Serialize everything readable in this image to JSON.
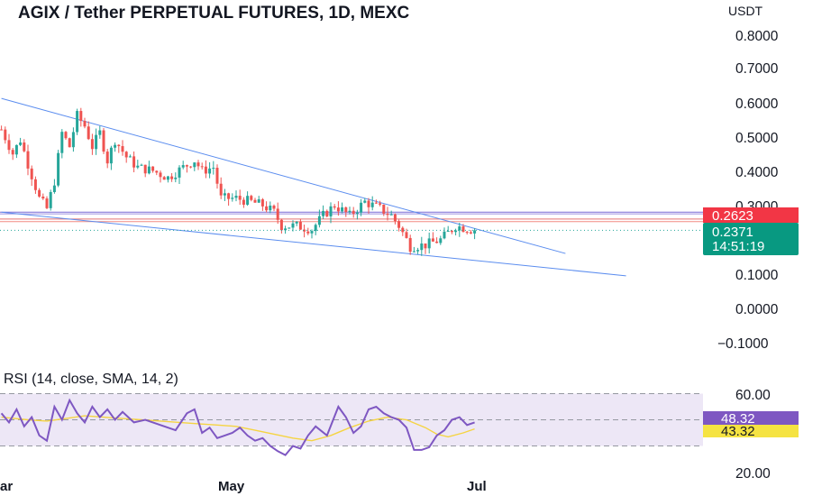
{
  "header": {
    "title": "AGIX / Tether PERPETUAL FUTURES, 1D, MEXC",
    "currency": "USDT"
  },
  "price_axis": {
    "ticks": [
      "0.8000",
      "0.7000",
      "0.6000",
      "0.5000",
      "0.4000",
      "0.3000",
      "0.1000",
      "0.0000",
      "−0.1000"
    ]
  },
  "price_tags": {
    "resistance": "0.2623",
    "last_price": "0.2371",
    "countdown": "14:51:19"
  },
  "time_axis": {
    "labels": [
      "ar",
      "May",
      "Jul"
    ]
  },
  "rsi_panel": {
    "title": "RSI (14, close, SMA, 14, 2)",
    "ticks": [
      "60.00",
      "20.00"
    ],
    "rsi_value": "48.32",
    "sma_value": "43.32"
  },
  "colors": {
    "up": "#26a69a",
    "down": "#ef5350",
    "trendline": "#5b8def",
    "rsi": "#7e57c2",
    "rsi_sma": "#f5d442",
    "rsi_band": "#ede7f6",
    "resistance_tag": "#f23645",
    "last_price_tag": "#089981"
  },
  "chart_data": [
    {
      "type": "candlestick",
      "title": "AGIX / Tether PERPETUAL FUTURES, 1D, MEXC",
      "ylabel": "USDT",
      "ylim": [
        -0.15,
        0.85
      ],
      "x_labels": [
        "ar",
        "May",
        "Jul"
      ],
      "anchors": [
        {
          "d": -2,
          "p": 0.53
        },
        {
          "d": 1,
          "p": 0.46
        },
        {
          "d": 3,
          "p": 0.5
        },
        {
          "d": 5,
          "p": 0.43
        },
        {
          "d": 8,
          "p": 0.33
        },
        {
          "d": 10,
          "p": 0.3
        },
        {
          "d": 12,
          "p": 0.38
        },
        {
          "d": 14,
          "p": 0.52
        },
        {
          "d": 16,
          "p": 0.48
        },
        {
          "d": 18,
          "p": 0.57
        },
        {
          "d": 20,
          "p": 0.54
        },
        {
          "d": 22,
          "p": 0.48
        },
        {
          "d": 24,
          "p": 0.52
        },
        {
          "d": 26,
          "p": 0.44
        },
        {
          "d": 28,
          "p": 0.5
        },
        {
          "d": 31,
          "p": 0.45
        },
        {
          "d": 34,
          "p": 0.42
        },
        {
          "d": 38,
          "p": 0.41
        },
        {
          "d": 42,
          "p": 0.39
        },
        {
          "d": 46,
          "p": 0.42
        },
        {
          "d": 49,
          "p": 0.44
        },
        {
          "d": 51,
          "p": 0.41
        },
        {
          "d": 54,
          "p": 0.42
        },
        {
          "d": 56,
          "p": 0.33
        },
        {
          "d": 60,
          "p": 0.33
        },
        {
          "d": 64,
          "p": 0.32
        },
        {
          "d": 67,
          "p": 0.31
        },
        {
          "d": 70,
          "p": 0.29
        },
        {
          "d": 72,
          "p": 0.25
        },
        {
          "d": 76,
          "p": 0.25
        },
        {
          "d": 80,
          "p": 0.24
        },
        {
          "d": 83,
          "p": 0.28
        },
        {
          "d": 86,
          "p": 0.31
        },
        {
          "d": 90,
          "p": 0.28
        },
        {
          "d": 94,
          "p": 0.32
        },
        {
          "d": 98,
          "p": 0.3
        },
        {
          "d": 101,
          "p": 0.28
        },
        {
          "d": 103,
          "p": 0.25
        },
        {
          "d": 106,
          "p": 0.19
        },
        {
          "d": 110,
          "p": 0.195
        },
        {
          "d": 114,
          "p": 0.21
        },
        {
          "d": 118,
          "p": 0.25
        },
        {
          "d": 120,
          "p": 0.245
        },
        {
          "d": 123,
          "p": 0.237
        }
      ],
      "trendlines": [
        {
          "name": "upper",
          "from": {
            "d": -2,
            "p": 0.62
          },
          "to": {
            "d": 147,
            "p": 0.17
          }
        },
        {
          "name": "lower",
          "from": {
            "d": -2,
            "p": 0.29
          },
          "to": {
            "d": 163,
            "p": 0.105
          }
        }
      ],
      "horizontal_levels": [
        0.29,
        0.285,
        0.27,
        0.2623
      ],
      "last_price": 0.2371,
      "axis_ticks": [
        0.8,
        0.7,
        0.6,
        0.5,
        0.4,
        0.3,
        0.1,
        0.0,
        -0.1
      ]
    },
    {
      "type": "line",
      "title": "RSI (14, close, SMA, 14, 2)",
      "ylim": [
        20,
        70
      ],
      "bands": [
        30,
        70
      ],
      "series": [
        {
          "name": "RSI",
          "x": [
            -2,
            0,
            2,
            4,
            6,
            8,
            10,
            12,
            14,
            16,
            18,
            20,
            22,
            24,
            26,
            28,
            30,
            33,
            36,
            40,
            44,
            47,
            49,
            51,
            53,
            55,
            57,
            59,
            61,
            63,
            65,
            67,
            69,
            71,
            73,
            75,
            77,
            79,
            81,
            84,
            87,
            89,
            91,
            93,
            95,
            97,
            99,
            101,
            103,
            105,
            107,
            109,
            111,
            113,
            115,
            117,
            119,
            121,
            123
          ],
          "values": [
            55,
            48,
            58,
            45,
            52,
            38,
            34,
            60,
            50,
            65,
            55,
            48,
            60,
            52,
            58,
            50,
            56,
            48,
            50,
            46,
            42,
            55,
            58,
            40,
            44,
            36,
            38,
            40,
            44,
            38,
            34,
            36,
            30,
            26,
            23,
            30,
            28,
            38,
            45,
            38,
            60,
            52,
            40,
            45,
            58,
            60,
            55,
            52,
            50,
            44,
            27,
            27,
            29,
            38,
            42,
            50,
            52,
            46,
            48
          ]
        },
        {
          "name": "SMA",
          "x": [
            -2,
            5,
            10,
            15,
            20,
            25,
            30,
            35,
            40,
            45,
            50,
            55,
            60,
            65,
            70,
            75,
            80,
            85,
            90,
            95,
            100,
            105,
            110,
            113,
            116,
            120,
            123
          ],
          "values": [
            52,
            50,
            49,
            51,
            53,
            52,
            51,
            50,
            49,
            48,
            47,
            46,
            45,
            42,
            39,
            36,
            34,
            38,
            44,
            49,
            52,
            50,
            44,
            39,
            37,
            40,
            43
          ]
        }
      ],
      "labels": [
        "60.00",
        "20.00"
      ]
    }
  ]
}
